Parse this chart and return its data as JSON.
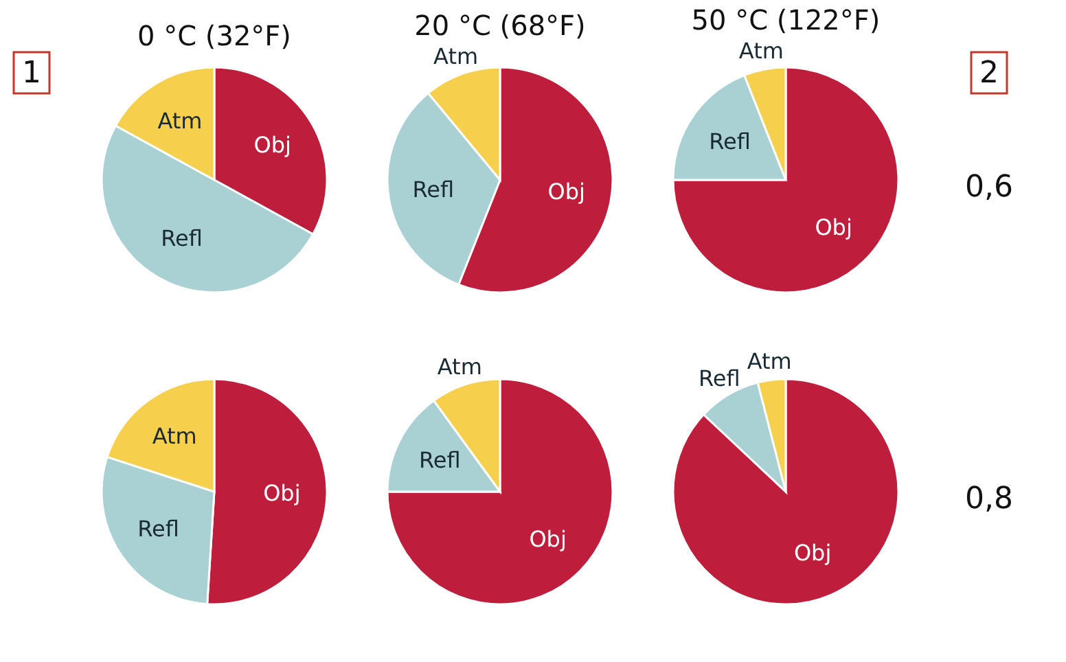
{
  "chart_data": [
    {
      "type": "pie",
      "title": "0 °C (32°F)",
      "categories": [
        "Obj",
        "Refl",
        "Atm"
      ],
      "values": [
        33,
        50,
        17
      ],
      "colors": [
        "#be1e3c",
        "#a9d1d3",
        "#f6d04d"
      ],
      "annotations": [
        "1"
      ]
    },
    {
      "type": "pie",
      "title": "20 °C (68°F)",
      "categories": [
        "Obj",
        "Refl",
        "Atm"
      ],
      "values": [
        56,
        33,
        11
      ],
      "colors": [
        "#be1e3c",
        "#a9d1d3",
        "#f6d04d"
      ]
    },
    {
      "type": "pie",
      "title": "50 °C (122°F)",
      "categories": [
        "Obj",
        "Refl",
        "Atm"
      ],
      "values": [
        75,
        19,
        6
      ],
      "colors": [
        "#be1e3c",
        "#a9d1d3",
        "#f6d04d"
      ],
      "annotations": [
        "2",
        "0,6"
      ]
    },
    {
      "type": "pie",
      "categories": [
        "Obj",
        "Refl",
        "Atm"
      ],
      "values": [
        51,
        29,
        20
      ],
      "colors": [
        "#be1e3c",
        "#a9d1d3",
        "#f6d04d"
      ]
    },
    {
      "type": "pie",
      "categories": [
        "Obj",
        "Refl",
        "Atm"
      ],
      "values": [
        75,
        15,
        10
      ],
      "colors": [
        "#be1e3c",
        "#a9d1d3",
        "#f6d04d"
      ]
    },
    {
      "type": "pie",
      "categories": [
        "Obj",
        "Refl",
        "Atm"
      ],
      "values": [
        87,
        9,
        4
      ],
      "colors": [
        "#be1e3c",
        "#a9d1d3",
        "#f6d04d"
      ],
      "annotations": [
        "0,8"
      ]
    }
  ]
}
